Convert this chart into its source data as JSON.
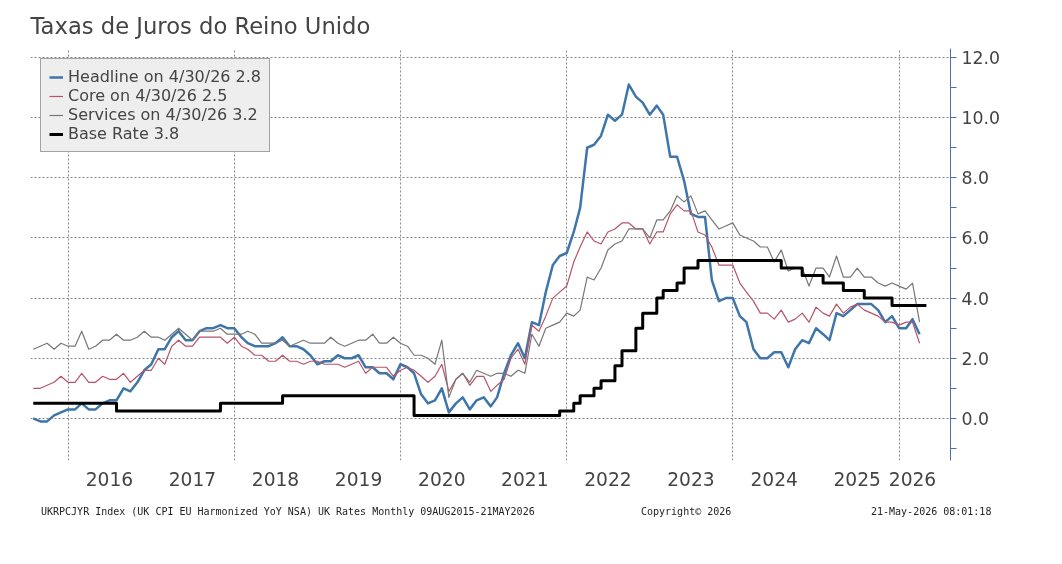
{
  "chart_data": {
    "type": "line",
    "title": "Taxas de Juros do Reino Unido",
    "x": [
      "2015-08",
      "2015-09",
      "2015-10",
      "2015-11",
      "2015-12",
      "2016-01",
      "2016-02",
      "2016-03",
      "2016-04",
      "2016-05",
      "2016-06",
      "2016-07",
      "2016-08",
      "2016-09",
      "2016-10",
      "2016-11",
      "2016-12",
      "2017-01",
      "2017-02",
      "2017-03",
      "2017-04",
      "2017-05",
      "2017-06",
      "2017-07",
      "2017-08",
      "2017-09",
      "2017-10",
      "2017-11",
      "2017-12",
      "2018-01",
      "2018-02",
      "2018-03",
      "2018-04",
      "2018-05",
      "2018-06",
      "2018-07",
      "2018-08",
      "2018-09",
      "2018-10",
      "2018-11",
      "2018-12",
      "2019-01",
      "2019-02",
      "2019-03",
      "2019-04",
      "2019-05",
      "2019-06",
      "2019-07",
      "2019-08",
      "2019-09",
      "2019-10",
      "2019-11",
      "2019-12",
      "2020-01",
      "2020-02",
      "2020-03",
      "2020-04",
      "2020-05",
      "2020-06",
      "2020-07",
      "2020-08",
      "2020-09",
      "2020-10",
      "2020-11",
      "2020-12",
      "2021-01",
      "2021-02",
      "2021-03",
      "2021-04",
      "2021-05",
      "2021-06",
      "2021-07",
      "2021-08",
      "2021-09",
      "2021-10",
      "2021-11",
      "2021-12",
      "2022-01",
      "2022-02",
      "2022-03",
      "2022-04",
      "2022-05",
      "2022-06",
      "2022-07",
      "2022-08",
      "2022-09",
      "2022-10",
      "2022-11",
      "2022-12",
      "2023-01",
      "2023-02",
      "2023-03",
      "2023-04",
      "2023-05",
      "2023-06",
      "2023-07",
      "2023-08",
      "2023-09",
      "2023-10",
      "2023-11",
      "2023-12",
      "2024-01",
      "2024-02",
      "2024-03",
      "2024-04",
      "2024-05",
      "2024-06",
      "2024-07",
      "2024-08",
      "2024-09",
      "2024-10",
      "2024-11",
      "2024-12",
      "2025-01",
      "2025-02",
      "2025-03",
      "2025-04",
      "2025-05",
      "2025-06",
      "2025-07",
      "2025-08",
      "2025-09",
      "2025-10",
      "2025-11",
      "2025-12",
      "2026-01",
      "2026-02",
      "2026-03",
      "2026-04"
    ],
    "series": [
      {
        "name": "Headline on 4/30/26 2.8",
        "color": "#3f76aa",
        "values": [
          0.0,
          -0.1,
          -0.1,
          0.1,
          0.2,
          0.3,
          0.3,
          0.5,
          0.3,
          0.3,
          0.5,
          0.6,
          0.6,
          1.0,
          0.9,
          1.2,
          1.6,
          1.8,
          2.3,
          2.3,
          2.7,
          2.9,
          2.6,
          2.6,
          2.9,
          3.0,
          3.0,
          3.1,
          3.0,
          3.0,
          2.7,
          2.5,
          2.4,
          2.4,
          2.4,
          2.5,
          2.7,
          2.4,
          2.4,
          2.3,
          2.1,
          1.8,
          1.9,
          1.9,
          2.1,
          2.0,
          2.0,
          2.1,
          1.7,
          1.7,
          1.5,
          1.5,
          1.3,
          1.8,
          1.7,
          1.5,
          0.8,
          0.5,
          0.6,
          1.0,
          0.2,
          0.5,
          0.7,
          0.3,
          0.6,
          0.7,
          0.4,
          0.7,
          1.5,
          2.1,
          2.5,
          2.0,
          3.2,
          3.1,
          4.2,
          5.1,
          5.4,
          5.5,
          6.2,
          7.0,
          9.0,
          9.1,
          9.4,
          10.1,
          9.9,
          10.1,
          11.1,
          10.7,
          10.5,
          10.1,
          10.4,
          10.1,
          8.7,
          8.7,
          7.9,
          6.8,
          6.7,
          6.7,
          4.6,
          3.9,
          4.0,
          4.0,
          3.4,
          3.2,
          2.3,
          2.0,
          2.0,
          2.2,
          2.2,
          1.7,
          2.3,
          2.6,
          2.5,
          3.0,
          2.8,
          2.6,
          3.5,
          3.4,
          3.6,
          3.8,
          3.8,
          3.8,
          3.6,
          3.2,
          3.4,
          3.0,
          3.0,
          3.3,
          2.8
        ]
      },
      {
        "name": "Core on 4/30/26 2.5",
        "color": "#b8546a",
        "values": [
          1.0,
          1.0,
          1.1,
          1.2,
          1.4,
          1.2,
          1.2,
          1.5,
          1.2,
          1.2,
          1.4,
          1.3,
          1.3,
          1.5,
          1.2,
          1.4,
          1.6,
          1.6,
          2.0,
          1.8,
          2.4,
          2.6,
          2.4,
          2.4,
          2.7,
          2.7,
          2.7,
          2.7,
          2.5,
          2.7,
          2.4,
          2.3,
          2.1,
          2.1,
          1.9,
          1.9,
          2.1,
          1.9,
          1.9,
          1.8,
          1.9,
          1.9,
          1.8,
          1.8,
          1.8,
          1.7,
          1.8,
          1.9,
          1.5,
          1.7,
          1.7,
          1.7,
          1.4,
          1.6,
          1.7,
          1.6,
          1.4,
          1.2,
          1.4,
          1.8,
          0.9,
          1.3,
          1.5,
          1.1,
          1.4,
          1.4,
          0.9,
          1.1,
          1.3,
          2.0,
          2.3,
          1.8,
          3.1,
          2.9,
          3.4,
          4.0,
          4.2,
          4.4,
          5.2,
          5.7,
          6.2,
          5.9,
          5.8,
          6.2,
          6.3,
          6.5,
          6.5,
          6.3,
          6.3,
          5.8,
          6.2,
          6.2,
          6.8,
          7.1,
          6.9,
          6.9,
          6.2,
          6.1,
          5.7,
          5.1,
          5.1,
          5.1,
          4.5,
          4.2,
          3.9,
          3.5,
          3.5,
          3.3,
          3.6,
          3.2,
          3.3,
          3.5,
          3.2,
          3.7,
          3.5,
          3.4,
          3.8,
          3.5,
          3.7,
          3.8,
          3.6,
          3.5,
          3.4,
          3.2,
          3.2,
          3.1,
          3.2,
          3.2,
          2.5
        ]
      },
      {
        "name": "Services on 4/30/26 3.2",
        "color": "#777777",
        "values": [
          2.3,
          2.4,
          2.5,
          2.3,
          2.5,
          2.4,
          2.4,
          2.9,
          2.3,
          2.4,
          2.6,
          2.6,
          2.8,
          2.6,
          2.6,
          2.7,
          2.9,
          2.7,
          2.7,
          2.6,
          2.8,
          3.0,
          2.8,
          2.6,
          2.9,
          2.9,
          2.9,
          3.0,
          2.8,
          2.8,
          2.8,
          2.9,
          2.8,
          2.5,
          2.5,
          2.5,
          2.6,
          2.4,
          2.5,
          2.6,
          2.5,
          2.5,
          2.5,
          2.7,
          2.5,
          2.4,
          2.5,
          2.6,
          2.6,
          2.8,
          2.5,
          2.5,
          2.7,
          2.5,
          2.4,
          2.1,
          2.1,
          2.0,
          1.8,
          2.6,
          0.7,
          1.3,
          1.5,
          1.2,
          1.6,
          1.5,
          1.4,
          1.5,
          1.5,
          1.4,
          1.6,
          1.5,
          2.8,
          2.4,
          3.0,
          3.1,
          3.2,
          3.5,
          3.4,
          3.6,
          4.7,
          4.6,
          5.0,
          5.6,
          5.8,
          5.9,
          6.3,
          6.3,
          6.3,
          6.0,
          6.6,
          6.6,
          6.9,
          7.4,
          7.2,
          7.4,
          6.8,
          6.9,
          6.6,
          6.3,
          6.4,
          6.5,
          6.1,
          6.0,
          5.9,
          5.7,
          5.7,
          5.2,
          5.6,
          4.9,
          5.0,
          5.0,
          4.4,
          5.0,
          5.0,
          4.7,
          5.4,
          4.7,
          4.7,
          5.0,
          4.7,
          4.7,
          4.5,
          4.4,
          4.5,
          4.4,
          4.3,
          4.5,
          3.2
        ]
      },
      {
        "name": "Base Rate 3.8",
        "color": "#000000",
        "type": "step",
        "x": [
          "2015-08",
          "2016-08",
          "2017-11",
          "2018-08",
          "2020-03",
          "2021-12",
          "2022-02",
          "2022-03",
          "2022-05",
          "2022-06",
          "2022-08",
          "2022-09",
          "2022-11",
          "2022-12",
          "2023-02",
          "2023-03",
          "2023-05",
          "2023-06",
          "2023-08",
          "2024-08",
          "2024-11",
          "2025-02",
          "2025-05",
          "2025-08",
          "2025-12",
          "2026-05"
        ],
        "values": [
          0.5,
          0.25,
          0.5,
          0.75,
          0.1,
          0.25,
          0.5,
          0.75,
          1.0,
          1.25,
          1.75,
          2.25,
          3.0,
          3.5,
          4.0,
          4.25,
          4.5,
          5.0,
          5.25,
          5.0,
          4.75,
          4.5,
          4.25,
          4.0,
          3.75,
          3.75
        ]
      }
    ],
    "xlim": [
      "2015-07-20",
      "2026-08-15"
    ],
    "xticks": [
      {
        "value": "2016-01",
        "label": null
      },
      {
        "value": "2018-01",
        "label": null
      },
      {
        "value": "2020-01",
        "label": null
      },
      {
        "value": "2022-01",
        "label": null
      },
      {
        "value": "2024-01",
        "label": null
      },
      {
        "value": "2026-01",
        "label": null
      },
      {
        "value": "2016-07",
        "label": "2016"
      },
      {
        "value": "2017-07",
        "label": "2017"
      },
      {
        "value": "2018-07",
        "label": "2018"
      },
      {
        "value": "2019-07",
        "label": "2019"
      },
      {
        "value": "2020-07",
        "label": "2020"
      },
      {
        "value": "2021-07",
        "label": "2021"
      },
      {
        "value": "2022-07",
        "label": "2022"
      },
      {
        "value": "2023-07",
        "label": "2023"
      },
      {
        "value": "2024-07",
        "label": "2024"
      },
      {
        "value": "2025-07",
        "label": "2025"
      },
      {
        "value": "2026-03",
        "label": "2026"
      }
    ],
    "ylim": [
      -1.4,
      12.3
    ],
    "yticks": [
      {
        "value": 0,
        "label": "0.0"
      },
      {
        "value": 2,
        "label": "2.0"
      },
      {
        "value": 4,
        "label": "4.0"
      },
      {
        "value": 6,
        "label": "6.0"
      },
      {
        "value": 8,
        "label": "8.0"
      },
      {
        "value": 10,
        "label": "10.0"
      },
      {
        "value": 12,
        "label": "12.0"
      },
      {
        "value": -1,
        "label": null
      },
      {
        "value": 1,
        "label": null
      },
      {
        "value": 3,
        "label": null
      },
      {
        "value": 5,
        "label": null
      },
      {
        "value": 7,
        "label": null
      },
      {
        "value": 9,
        "label": null
      },
      {
        "value": 11,
        "label": null
      }
    ],
    "grid": true,
    "legend": "top left",
    "line_style": "solid",
    "annotations": [
      "UKRPCJYR Index (UK CPI EU Harmonized YoY NSA) UK Rates Monthly 09AUG2015-21MAY2026",
      "Copyright© 2026",
      "21-May-2026 08:01:18"
    ]
  }
}
